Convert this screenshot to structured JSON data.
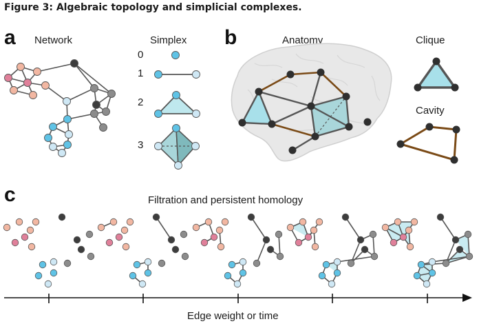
{
  "caption": "Figure 3: Algebraic topology and simplicial complexes.",
  "panels": {
    "a": {
      "letter": "a",
      "network_label": "Network",
      "simplex_label": "Simplex",
      "dimensions": [
        "0",
        "1",
        "2",
        "3"
      ]
    },
    "b": {
      "letter": "b",
      "anatomy_label": "Anatomy",
      "clique_label": "Clique",
      "cavity_label": "Cavity"
    },
    "c": {
      "letter": "c",
      "title": "Filtration and persistent homology",
      "axis_label": "Edge weight or time",
      "stage_count": 5
    }
  },
  "colors": {
    "pink": "#e0809a",
    "peach": "#f2b7a2",
    "light_blue": "#5fc3e6",
    "pale_blue": "#cfe8f5",
    "dark_gray": "#3d3d3d",
    "mid_gray": "#8c8c8c",
    "edge_gray": "#555555",
    "cavity_brown": "#7a4a16",
    "simplex_fill": "#bfe8ee",
    "brain_fill": "#e8e8e8"
  }
}
